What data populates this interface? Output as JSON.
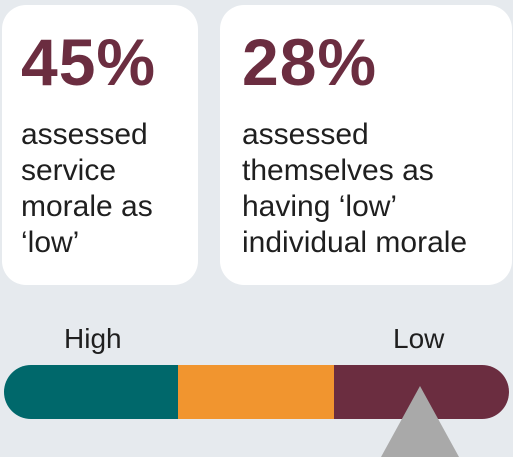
{
  "stats": {
    "service": {
      "value": "45%",
      "line1": "assessed",
      "line2": "service",
      "line3": "morale as",
      "line4": "‘low’"
    },
    "individual": {
      "value": "28%",
      "line1": "assessed",
      "line2": "themselves as",
      "line3": "having ‘low’",
      "line4": "individual morale"
    }
  },
  "scale": {
    "high_label": "High",
    "low_label": "Low",
    "colors": {
      "high": "#00686b",
      "mid": "#f1952f",
      "low": "#6b2d40",
      "pointer": "#a9a9a9",
      "stat_text": "#6b2d40"
    }
  }
}
